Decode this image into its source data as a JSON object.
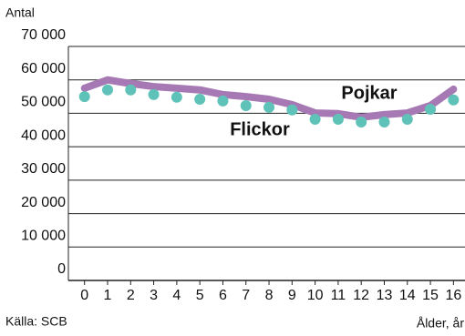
{
  "chart_data": {
    "type": "line",
    "y_label": "Antal",
    "x_label": "Ålder, år",
    "source": "Källa: SCB",
    "x": [
      0,
      1,
      2,
      3,
      4,
      5,
      6,
      7,
      8,
      9,
      10,
      11,
      12,
      13,
      14,
      15,
      16
    ],
    "xlim": [
      -0.7,
      16.5
    ],
    "xticks": [
      0,
      1,
      2,
      3,
      4,
      5,
      6,
      7,
      8,
      9,
      10,
      11,
      12,
      13,
      14,
      15,
      16
    ],
    "ylim": [
      0,
      70000
    ],
    "yticks": [
      0,
      {
        "value": 10000,
        "label": "10 000"
      },
      {
        "value": 20000,
        "label": "20 000"
      },
      {
        "value": 30000,
        "label": "30 000"
      },
      {
        "value": 40000,
        "label": "40 000"
      },
      {
        "value": 50000,
        "label": "50 000"
      },
      {
        "value": 60000,
        "label": "60 000"
      },
      {
        "value": 70000,
        "label": "70 000"
      }
    ],
    "grid": true,
    "series": [
      {
        "name": "Pojkar",
        "color": "#a678b4",
        "style": "line",
        "values": [
          57500,
          60000,
          58900,
          58000,
          57500,
          57000,
          55600,
          55000,
          54200,
          52600,
          50100,
          49900,
          48800,
          49600,
          50100,
          52300,
          57200
        ]
      },
      {
        "name": "Flickor",
        "color": "#5fc2b8",
        "style": "dots",
        "values": [
          55000,
          57000,
          57000,
          55600,
          54800,
          54200,
          53700,
          52300,
          51800,
          51000,
          48200,
          48200,
          47400,
          47400,
          48200,
          51200,
          54000
        ]
      }
    ]
  }
}
